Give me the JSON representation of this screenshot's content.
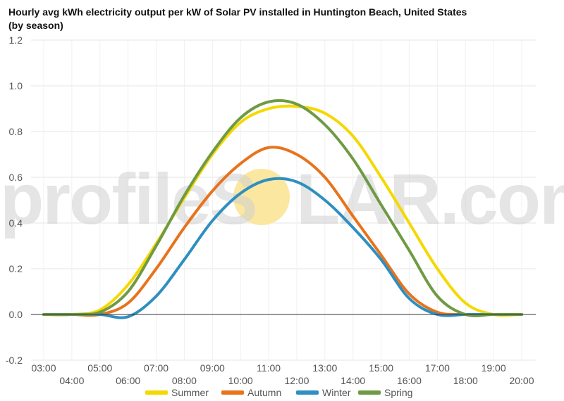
{
  "chart_data": {
    "type": "line",
    "title": "Hourly avg kWh electricity output per kW of Solar PV installed in Huntington Beach, United States (by season)",
    "xlabel": "",
    "ylabel": "",
    "x": [
      "03:00",
      "04:00",
      "05:00",
      "06:00",
      "07:00",
      "08:00",
      "09:00",
      "10:00",
      "11:00",
      "12:00",
      "13:00",
      "14:00",
      "15:00",
      "16:00",
      "17:00",
      "18:00",
      "19:00",
      "20:00"
    ],
    "ylim": [
      -0.2,
      1.2
    ],
    "yticks": [
      "-0.2",
      "0.0",
      "0.2",
      "0.4",
      "0.6",
      "0.8",
      "1.0",
      "1.2"
    ],
    "ytick_values": [
      -0.2,
      0.0,
      0.2,
      0.4,
      0.6,
      0.8,
      1.0,
      1.2
    ],
    "grid": true,
    "legend_position": "bottom",
    "series": [
      {
        "name": "Summer",
        "color": "#f5d800",
        "values": [
          0.0,
          0.0,
          0.02,
          0.13,
          0.31,
          0.51,
          0.7,
          0.84,
          0.9,
          0.91,
          0.88,
          0.78,
          0.6,
          0.4,
          0.2,
          0.05,
          0.0,
          0.0
        ]
      },
      {
        "name": "Autumn",
        "color": "#e8731c",
        "values": [
          0.0,
          0.0,
          0.0,
          0.05,
          0.2,
          0.38,
          0.54,
          0.66,
          0.73,
          0.7,
          0.6,
          0.43,
          0.26,
          0.09,
          0.01,
          0.0,
          0.0,
          0.0
        ]
      },
      {
        "name": "Winter",
        "color": "#2e8fc0",
        "values": [
          0.0,
          0.0,
          0.0,
          -0.01,
          0.08,
          0.24,
          0.41,
          0.53,
          0.59,
          0.58,
          0.5,
          0.38,
          0.24,
          0.07,
          0.0,
          0.0,
          0.0,
          0.0
        ]
      },
      {
        "name": "Spring",
        "color": "#6f9a45",
        "values": [
          0.0,
          0.0,
          0.01,
          0.1,
          0.3,
          0.52,
          0.71,
          0.86,
          0.93,
          0.92,
          0.83,
          0.68,
          0.48,
          0.28,
          0.08,
          0.0,
          0.0,
          0.0
        ]
      }
    ]
  },
  "watermark": {
    "left": "profileS",
    "right": "LAR.com",
    "sun_color": "#fbe7a0"
  }
}
